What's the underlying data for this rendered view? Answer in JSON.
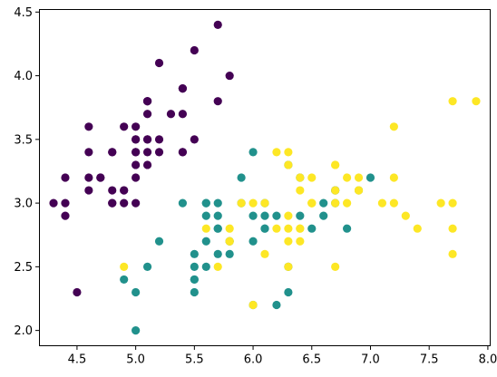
{
  "chart_data": {
    "type": "scatter",
    "title": "",
    "xlabel": "",
    "ylabel": "",
    "xlim": [
      4.18,
      8.02
    ],
    "ylim": [
      1.88,
      4.52
    ],
    "grid": false,
    "legend": "none",
    "xticks": [
      {
        "value": 4.5,
        "label": "4.5"
      },
      {
        "value": 5.0,
        "label": "5.0"
      },
      {
        "value": 5.5,
        "label": "5.5"
      },
      {
        "value": 6.0,
        "label": "6.0"
      },
      {
        "value": 6.5,
        "label": "6.5"
      },
      {
        "value": 7.0,
        "label": "7.0"
      },
      {
        "value": 7.5,
        "label": "7.5"
      },
      {
        "value": 8.0,
        "label": "8.0"
      }
    ],
    "yticks": [
      {
        "value": 2.0,
        "label": "2.0"
      },
      {
        "value": 2.5,
        "label": "2.5"
      },
      {
        "value": 3.0,
        "label": "3.0"
      },
      {
        "value": 3.5,
        "label": "3.5"
      },
      {
        "value": 4.0,
        "label": "4.0"
      },
      {
        "value": 4.5,
        "label": "4.5"
      }
    ],
    "series": [
      {
        "color": "#440154",
        "points": [
          [
            5.1,
            3.5
          ],
          [
            4.9,
            3.0
          ],
          [
            4.7,
            3.2
          ],
          [
            4.6,
            3.1
          ],
          [
            5.0,
            3.6
          ],
          [
            5.4,
            3.9
          ],
          [
            4.6,
            3.4
          ],
          [
            5.0,
            3.4
          ],
          [
            4.4,
            2.9
          ],
          [
            4.9,
            3.1
          ],
          [
            5.4,
            3.7
          ],
          [
            4.8,
            3.4
          ],
          [
            4.8,
            3.0
          ],
          [
            4.3,
            3.0
          ],
          [
            5.8,
            4.0
          ],
          [
            5.7,
            4.4
          ],
          [
            5.4,
            3.9
          ],
          [
            5.1,
            3.5
          ],
          [
            5.7,
            3.8
          ],
          [
            5.1,
            3.8
          ],
          [
            5.4,
            3.4
          ],
          [
            5.1,
            3.7
          ],
          [
            4.6,
            3.6
          ],
          [
            5.1,
            3.3
          ],
          [
            4.8,
            3.4
          ],
          [
            5.0,
            3.0
          ],
          [
            5.0,
            3.4
          ],
          [
            5.2,
            3.5
          ],
          [
            5.2,
            3.4
          ],
          [
            4.7,
            3.2
          ],
          [
            4.8,
            3.1
          ],
          [
            5.4,
            3.4
          ],
          [
            5.2,
            4.1
          ],
          [
            5.5,
            4.2
          ],
          [
            4.9,
            3.1
          ],
          [
            5.0,
            3.2
          ],
          [
            5.5,
            3.5
          ],
          [
            4.9,
            3.6
          ],
          [
            4.4,
            3.0
          ],
          [
            5.1,
            3.4
          ],
          [
            5.0,
            3.5
          ],
          [
            4.5,
            2.3
          ],
          [
            4.4,
            3.2
          ],
          [
            5.0,
            3.5
          ],
          [
            5.1,
            3.8
          ],
          [
            4.8,
            3.0
          ],
          [
            5.1,
            3.8
          ],
          [
            4.6,
            3.2
          ],
          [
            5.3,
            3.7
          ],
          [
            5.0,
            3.3
          ]
        ]
      },
      {
        "color": "#21918c",
        "points": [
          [
            7.0,
            3.2
          ],
          [
            6.4,
            3.2
          ],
          [
            6.9,
            3.1
          ],
          [
            5.5,
            2.3
          ],
          [
            6.5,
            2.8
          ],
          [
            5.7,
            2.8
          ],
          [
            6.3,
            3.3
          ],
          [
            4.9,
            2.4
          ],
          [
            6.6,
            2.9
          ],
          [
            5.2,
            2.7
          ],
          [
            5.0,
            2.0
          ],
          [
            5.9,
            3.0
          ],
          [
            6.0,
            2.2
          ],
          [
            6.1,
            2.9
          ],
          [
            5.6,
            2.9
          ],
          [
            6.7,
            3.1
          ],
          [
            5.6,
            3.0
          ],
          [
            5.8,
            2.7
          ],
          [
            6.2,
            2.2
          ],
          [
            5.6,
            2.5
          ],
          [
            5.9,
            3.2
          ],
          [
            6.1,
            2.8
          ],
          [
            6.3,
            2.5
          ],
          [
            6.1,
            2.8
          ],
          [
            6.4,
            2.9
          ],
          [
            6.6,
            3.0
          ],
          [
            6.8,
            2.8
          ],
          [
            6.7,
            3.0
          ],
          [
            6.0,
            2.9
          ],
          [
            5.7,
            2.6
          ],
          [
            5.5,
            2.4
          ],
          [
            5.5,
            2.4
          ],
          [
            5.8,
            2.7
          ],
          [
            6.0,
            2.7
          ],
          [
            5.4,
            3.0
          ],
          [
            6.0,
            3.4
          ],
          [
            6.7,
            3.1
          ],
          [
            6.3,
            2.3
          ],
          [
            5.6,
            3.0
          ],
          [
            5.5,
            2.5
          ],
          [
            5.5,
            2.6
          ],
          [
            6.1,
            3.0
          ],
          [
            5.8,
            2.6
          ],
          [
            5.0,
            2.3
          ],
          [
            5.6,
            2.7
          ],
          [
            5.7,
            3.0
          ],
          [
            5.7,
            2.9
          ],
          [
            6.2,
            2.9
          ],
          [
            5.1,
            2.5
          ],
          [
            5.7,
            2.8
          ]
        ]
      },
      {
        "color": "#fde725",
        "points": [
          [
            6.3,
            3.3
          ],
          [
            5.8,
            2.7
          ],
          [
            7.1,
            3.0
          ],
          [
            6.3,
            2.9
          ],
          [
            6.5,
            3.0
          ],
          [
            7.6,
            3.0
          ],
          [
            4.9,
            2.5
          ],
          [
            7.3,
            2.9
          ],
          [
            6.7,
            2.5
          ],
          [
            7.2,
            3.6
          ],
          [
            6.5,
            3.2
          ],
          [
            6.4,
            2.7
          ],
          [
            6.8,
            3.0
          ],
          [
            5.7,
            2.5
          ],
          [
            5.8,
            2.8
          ],
          [
            6.4,
            3.2
          ],
          [
            6.5,
            3.0
          ],
          [
            7.7,
            3.8
          ],
          [
            7.7,
            2.6
          ],
          [
            6.0,
            2.2
          ],
          [
            6.9,
            3.2
          ],
          [
            5.6,
            2.8
          ],
          [
            7.7,
            2.8
          ],
          [
            6.3,
            2.7
          ],
          [
            6.7,
            3.3
          ],
          [
            7.2,
            3.2
          ],
          [
            6.2,
            2.8
          ],
          [
            6.1,
            3.0
          ],
          [
            6.4,
            2.8
          ],
          [
            7.2,
            3.0
          ],
          [
            7.4,
            2.8
          ],
          [
            7.9,
            3.8
          ],
          [
            6.4,
            2.8
          ],
          [
            6.3,
            2.8
          ],
          [
            6.1,
            2.6
          ],
          [
            7.7,
            3.0
          ],
          [
            6.3,
            3.4
          ],
          [
            6.4,
            3.1
          ],
          [
            6.0,
            3.0
          ],
          [
            6.9,
            3.1
          ],
          [
            6.7,
            3.1
          ],
          [
            6.9,
            3.1
          ],
          [
            5.8,
            2.7
          ],
          [
            6.8,
            3.2
          ],
          [
            6.7,
            3.3
          ],
          [
            6.7,
            3.0
          ],
          [
            6.3,
            2.5
          ],
          [
            6.5,
            3.0
          ],
          [
            6.2,
            3.4
          ],
          [
            5.9,
            3.0
          ]
        ]
      }
    ]
  }
}
